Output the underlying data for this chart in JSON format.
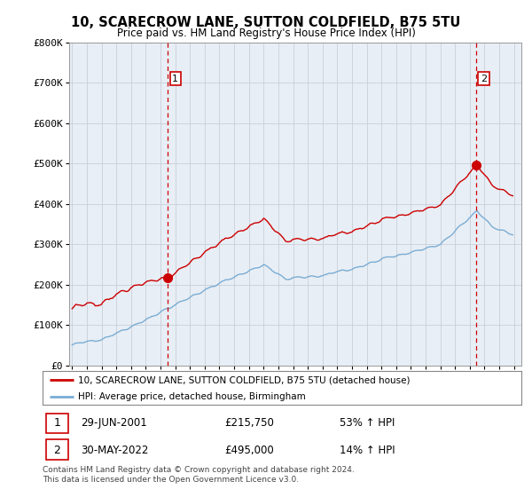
{
  "title": "10, SCARECROW LANE, SUTTON COLDFIELD, B75 5TU",
  "subtitle": "Price paid vs. HM Land Registry's House Price Index (HPI)",
  "legend_line1": "10, SCARECROW LANE, SUTTON COLDFIELD, B75 5TU (detached house)",
  "legend_line2": "HPI: Average price, detached house, Birmingham",
  "transaction1_date": "29-JUN-2001",
  "transaction1_price": "£215,750",
  "transaction1_hpi": "53% ↑ HPI",
  "transaction2_date": "30-MAY-2022",
  "transaction2_price": "£495,000",
  "transaction2_hpi": "14% ↑ HPI",
  "footnote": "Contains HM Land Registry data © Crown copyright and database right 2024.\nThis data is licensed under the Open Government Licence v3.0.",
  "hpi_color": "#7aadd4",
  "price_color": "#cc0000",
  "vline_color": "#cc0000",
  "chart_bg_color": "#e8eef5",
  "background_color": "#ffffff",
  "ylim": [
    0,
    800000
  ],
  "yticks": [
    0,
    100000,
    200000,
    300000,
    400000,
    500000,
    600000,
    700000,
    800000
  ],
  "xlim_start": 1994.8,
  "xlim_end": 2025.5,
  "transaction1_x": 2001.5,
  "transaction2_x": 2022.42
}
